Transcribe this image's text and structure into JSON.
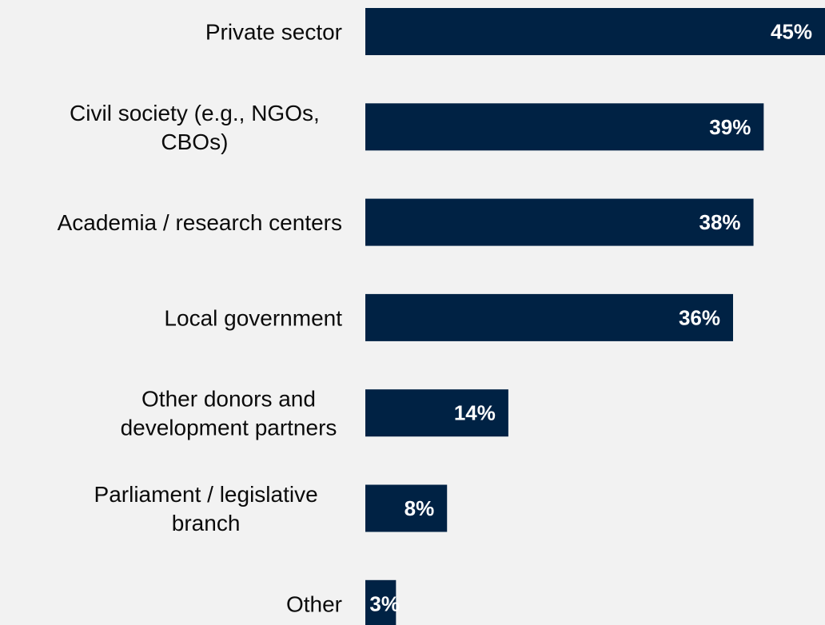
{
  "chart_data": {
    "type": "bar",
    "orientation": "horizontal",
    "categories": [
      [
        "Private sector"
      ],
      [
        "Civil society (e.g., NGOs,",
        "CBOs)"
      ],
      [
        "Academia / research centers"
      ],
      [
        "Local government"
      ],
      [
        "Other donors and",
        "development partners"
      ],
      [
        "Parliament / legislative",
        "branch"
      ],
      [
        "Other"
      ]
    ],
    "values": [
      45,
      39,
      38,
      36,
      14,
      8,
      3
    ],
    "value_labels": [
      "45%",
      "39%",
      "38%",
      "36%",
      "14%",
      "8%",
      "3%"
    ],
    "title": "",
    "xlabel": "",
    "ylabel": "",
    "xlim": [
      0,
      45
    ],
    "grid": false,
    "legend": "none",
    "colors": {
      "bar": "#002244",
      "background": "#f2f2f2",
      "label_text": "#0b0b0b",
      "value_text": "#ffffff"
    }
  }
}
